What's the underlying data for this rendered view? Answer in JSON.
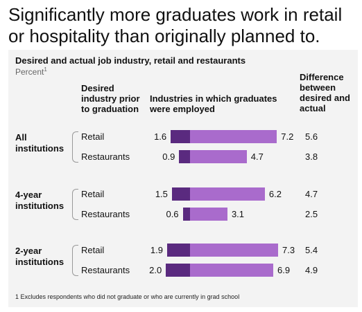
{
  "headline": "Significantly more graduates work in retail or hospitality than originally planned to.",
  "colors": {
    "desired": "#5a2a7f",
    "actual": "#a96bcc",
    "panel": "#f3f3f3"
  },
  "chart_data": {
    "type": "bar",
    "title": "Desired and actual job industry, retail and restaurants",
    "subtitle": "Percent",
    "subtitle_note": "1",
    "column_headers": {
      "desired": "Desired industry prior to graduation",
      "actual": "Industries in which graduates were employed",
      "difference": "Difference between desired and actual"
    },
    "groups": [
      {
        "label": "All institutions",
        "rows": [
          {
            "category": "Retail",
            "desired": 1.6,
            "actual": 7.2,
            "difference": 5.6
          },
          {
            "category": "Restaurants",
            "desired": 0.9,
            "actual": 4.7,
            "difference": 3.8
          }
        ]
      },
      {
        "label": "4-year institutions",
        "rows": [
          {
            "category": "Retail",
            "desired": 1.5,
            "actual": 6.2,
            "difference": 4.7
          },
          {
            "category": "Restaurants",
            "desired": 0.6,
            "actual": 3.1,
            "difference": 2.5
          }
        ]
      },
      {
        "label": "2-year institutions",
        "rows": [
          {
            "category": "Retail",
            "desired": 1.9,
            "actual": 7.3,
            "difference": 5.4
          },
          {
            "category": "Restaurants",
            "desired": 2.0,
            "actual": 6.9,
            "difference": 4.9
          }
        ]
      }
    ],
    "footnote": "1 Excludes respondents who did not graduate or who are currently in grad school"
  }
}
